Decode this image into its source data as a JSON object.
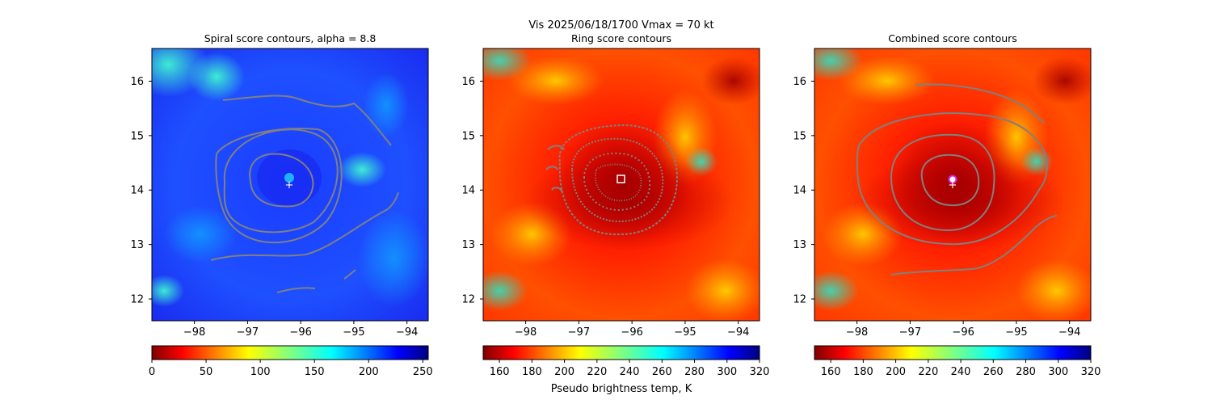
{
  "figure": {
    "suptitle_line1": "Vis  2025/06/18/1700    Vmax = 70 kt"
  },
  "chart_data": [
    {
      "type": "contour",
      "title": "Spiral score contours, alpha =  8.8",
      "xlim": [
        -98.8,
        -93.6
      ],
      "ylim": [
        11.6,
        16.6
      ],
      "xticks": [
        -98,
        -97,
        -96,
        -95,
        -94
      ],
      "yticks": [
        12,
        13,
        14,
        15,
        16
      ],
      "background_colormap": "jet_r",
      "background_dominant_color": "#1c3cff",
      "contour_color": "#808080",
      "marker": {
        "symbol": "+",
        "color": "#ffffff",
        "x": -96.2,
        "y": 14.1
      },
      "colorbar": {
        "colormap": "jet_r",
        "range": [
          0,
          255
        ],
        "ticks": [
          0,
          50,
          100,
          150,
          200,
          250
        ],
        "label": ""
      }
    },
    {
      "type": "contour",
      "title": "Ring score contours",
      "xlim": [
        -98.8,
        -93.6
      ],
      "ylim": [
        11.6,
        16.6
      ],
      "xticks": [
        -98,
        -97,
        -96,
        -95,
        -94
      ],
      "yticks": [
        12,
        13,
        14,
        15,
        16
      ],
      "background_colormap": "jet_r",
      "background_dominant_color": "#ff3a00",
      "contour_color": "#808080",
      "marker": {
        "symbol": "square",
        "color": "#ffffff",
        "x": -96.2,
        "y": 14.2
      },
      "colorbar": {
        "colormap": "jet_r",
        "range": [
          150,
          320
        ],
        "ticks": [
          160,
          180,
          200,
          220,
          240,
          260,
          280,
          300,
          320
        ],
        "label": "Pseudo brightness temp, K"
      }
    },
    {
      "type": "contour",
      "title": "Combined score contours",
      "xlim": [
        -98.8,
        -93.6
      ],
      "ylim": [
        11.6,
        16.6
      ],
      "xticks": [
        -98,
        -97,
        -96,
        -95,
        -94
      ],
      "yticks": [
        12,
        13,
        14,
        15,
        16
      ],
      "background_colormap": "jet_r",
      "background_dominant_color": "#ff3a00",
      "contour_color": "#808080",
      "marker": {
        "symbol": "+",
        "color": "#ffffff",
        "x": -96.2,
        "y": 14.1
      },
      "center_marker": {
        "symbol": "circle",
        "color": "#e020e0",
        "x": -96.2,
        "y": 14.2
      },
      "colorbar": {
        "colormap": "jet_r",
        "range": [
          150,
          320
        ],
        "ticks": [
          160,
          180,
          200,
          220,
          240,
          260,
          280,
          300,
          320
        ],
        "label": ""
      }
    }
  ]
}
